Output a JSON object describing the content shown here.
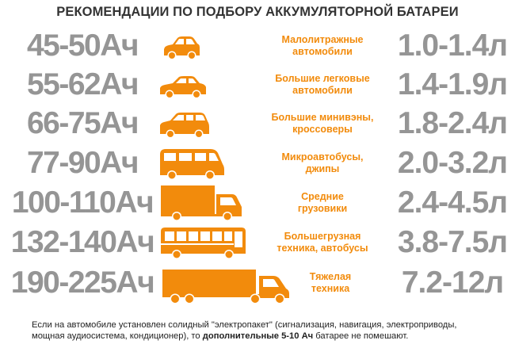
{
  "title": "РЕКОМЕНДАЦИИ ПО ПОДБОРУ АККУМУЛЯТОРНОЙ БАТАРЕИ",
  "accent_color": "#f28b0c",
  "text_gray": "#959595",
  "rows": [
    {
      "capacity": "45-50Ач",
      "class_line1": "Малолитражные",
      "class_line2": "автомобили",
      "engine": "1.0-1.4л",
      "icon": "small-car-icon"
    },
    {
      "capacity": "55-62Ач",
      "class_line1": "Большие легковые",
      "class_line2": "автомобили",
      "engine": "1.4-1.9л",
      "icon": "sedan-icon"
    },
    {
      "capacity": "66-75Ач",
      "class_line1": "Большие минивэны,",
      "class_line2": "кроссоверы",
      "engine": "1.8-2.4л",
      "icon": "minivan-icon"
    },
    {
      "capacity": "77-90Ач",
      "class_line1": "Микроавтобусы,",
      "class_line2": "джипы",
      "engine": "2.0-3.2л",
      "icon": "microbus-icon"
    },
    {
      "capacity": "100-110Ач",
      "class_line1": "Средние",
      "class_line2": "грузовики",
      "engine": "2.4-4.5л",
      "icon": "truck-icon"
    },
    {
      "capacity": "132-140Ач",
      "class_line1": "Большегрузная",
      "class_line2": "техника, автобусы",
      "engine": "3.8-7.5л",
      "icon": "bus-icon"
    },
    {
      "capacity": "190-225Ач",
      "class_line1": "Тяжелая",
      "class_line2": "техника",
      "engine": "7.2-12л",
      "icon": "semi-truck-icon"
    }
  ],
  "footnote": {
    "line1": "Если на автомобиле установлен солидный \"электропакет\" (сигнализация, навигация, электроприводы,",
    "line2_prefix": "мощная аудиосистема, кондиционер), то ",
    "line2_bold": "дополнительные 5-10 Ач",
    "line2_suffix": " батарее не помешают."
  }
}
